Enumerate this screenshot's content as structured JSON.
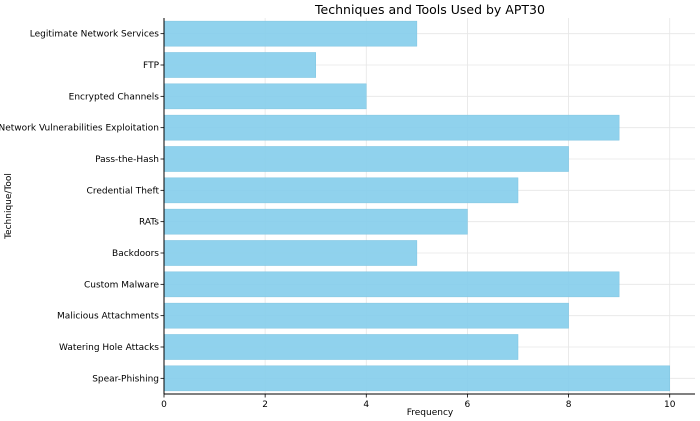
{
  "chart_data": {
    "type": "bar",
    "orientation": "horizontal",
    "title": "Techniques and Tools Used by APT30",
    "xlabel": "Frequency",
    "ylabel": "Technique/Tool",
    "categories": [
      "Spear-Phishing",
      "Watering Hole Attacks",
      "Malicious Attachments",
      "Custom Malware",
      "Backdoors",
      "RATs",
      "Credential Theft",
      "Pass-the-Hash",
      "Network Vulnerabilities Exploitation",
      "Encrypted Channels",
      "FTP",
      "Legitimate Network Services"
    ],
    "values": [
      10,
      7,
      8,
      9,
      5,
      6,
      7,
      8,
      9,
      4,
      3,
      5
    ],
    "xlim": [
      0,
      10.5
    ],
    "xticks": [
      "0",
      "2",
      "4",
      "6",
      "8",
      "10"
    ],
    "grid": true,
    "bar_color": "#87ceeb"
  }
}
